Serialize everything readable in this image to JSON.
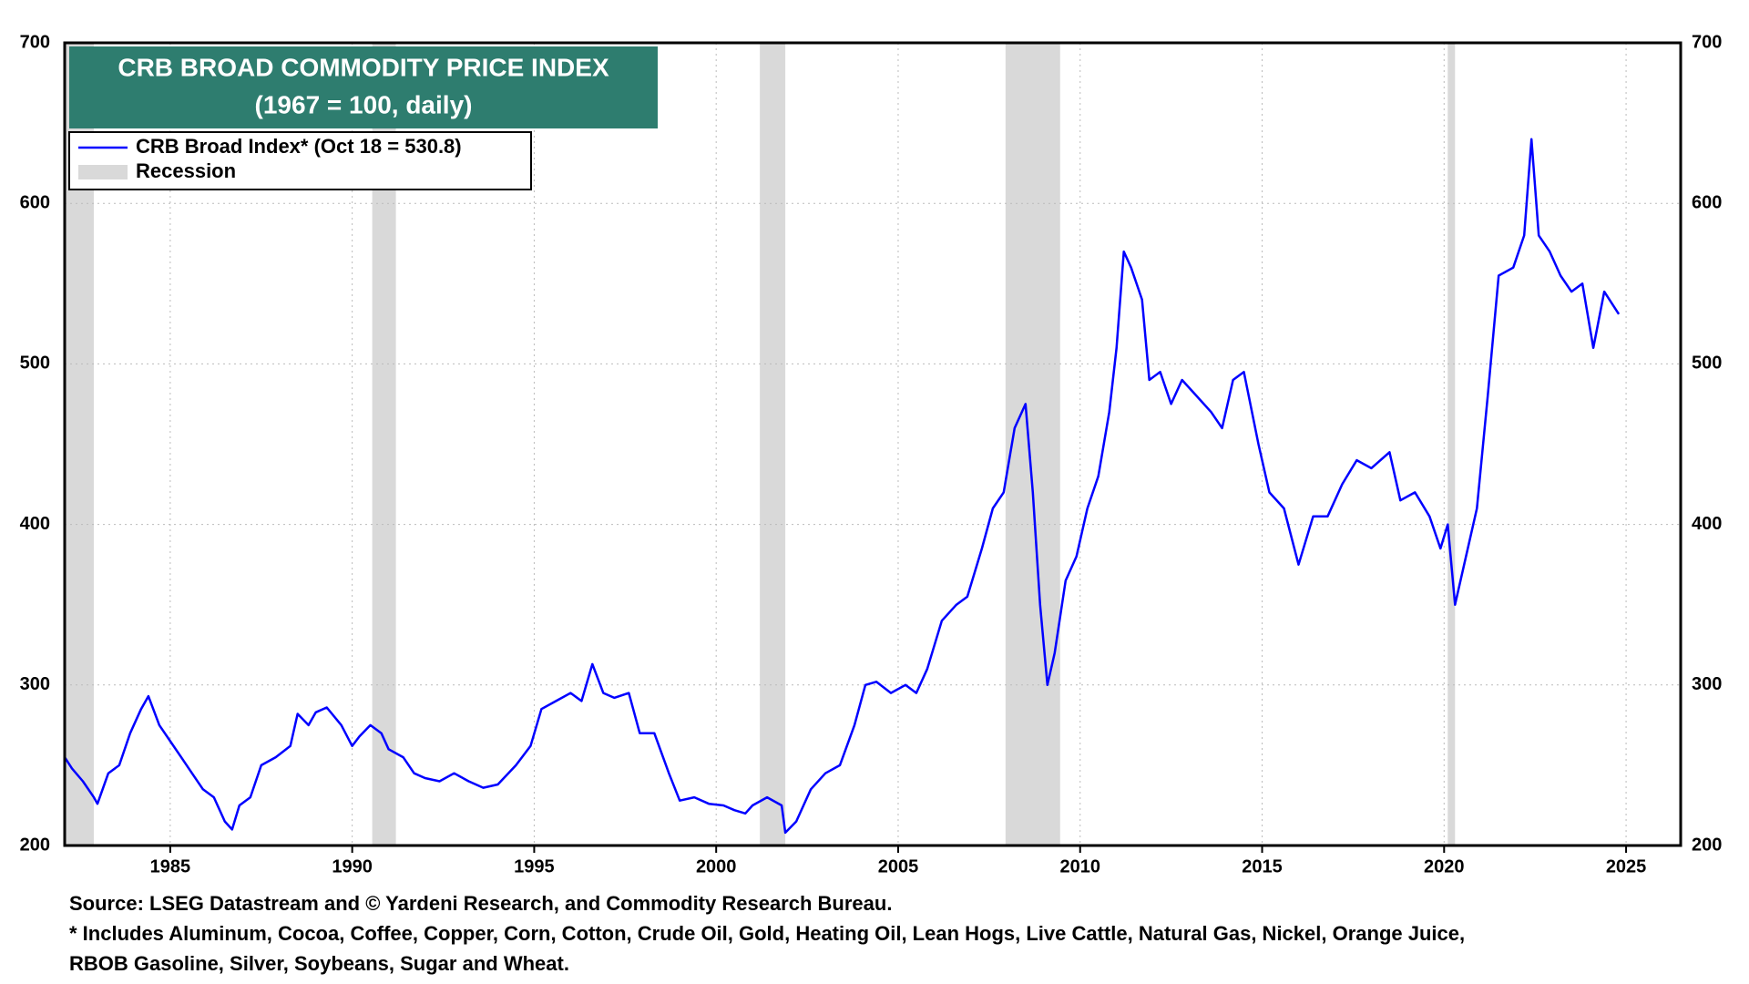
{
  "chart_data": {
    "type": "line",
    "title": "CRB BROAD COMMODITY PRICE INDEX",
    "subtitle": "(1967 = 100, daily)",
    "legend": "upper left",
    "grid": true,
    "xlim": [
      1982.1,
      2026.5
    ],
    "xticks": [
      1985,
      1990,
      1995,
      2000,
      2005,
      2010,
      2015,
      2020,
      2025
    ],
    "ylim": [
      200,
      700
    ],
    "yticks": [
      200,
      300,
      400,
      500,
      600,
      700
    ],
    "recessions": {
      "name": "Recession",
      "color": "#d9d9d9",
      "ranges": [
        [
          1981.55,
          1982.9
        ],
        [
          1990.55,
          1991.2
        ],
        [
          2001.2,
          2001.9
        ],
        [
          2007.95,
          2009.45
        ],
        [
          2020.1,
          2020.3
        ]
      ]
    },
    "x": [
      1982.1,
      1982.3,
      1982.6,
      1982.9,
      1983.0,
      1983.3,
      1983.6,
      1983.9,
      1984.2,
      1984.4,
      1984.7,
      1985.0,
      1985.3,
      1985.6,
      1985.9,
      1986.2,
      1986.5,
      1986.7,
      1986.9,
      1987.2,
      1987.5,
      1987.9,
      1988.3,
      1988.5,
      1988.8,
      1989.0,
      1989.3,
      1989.7,
      1990.0,
      1990.2,
      1990.5,
      1990.8,
      1991.0,
      1991.4,
      1991.7,
      1992.0,
      1992.4,
      1992.8,
      1993.2,
      1993.6,
      1994.0,
      1994.5,
      1994.9,
      1995.2,
      1995.6,
      1996.0,
      1996.3,
      1996.6,
      1996.9,
      1997.2,
      1997.6,
      1997.9,
      1998.3,
      1998.7,
      1999.0,
      1999.4,
      1999.8,
      2000.2,
      2000.5,
      2000.8,
      2001.0,
      2001.4,
      2001.8,
      2001.9,
      2002.2,
      2002.6,
      2003.0,
      2003.4,
      2003.8,
      2004.1,
      2004.4,
      2004.8,
      2005.2,
      2005.5,
      2005.8,
      2006.2,
      2006.6,
      2006.9,
      2007.3,
      2007.6,
      2007.9,
      2008.2,
      2008.5,
      2008.7,
      2008.9,
      2009.1,
      2009.3,
      2009.6,
      2009.9,
      2010.2,
      2010.5,
      2010.8,
      2011.0,
      2011.2,
      2011.4,
      2011.7,
      2011.9,
      2012.2,
      2012.5,
      2012.8,
      2013.2,
      2013.6,
      2013.9,
      2014.2,
      2014.5,
      2014.9,
      2015.2,
      2015.6,
      2016.0,
      2016.4,
      2016.8,
      2017.2,
      2017.6,
      2018.0,
      2018.5,
      2018.8,
      2019.2,
      2019.6,
      2019.9,
      2020.1,
      2020.3,
      2020.6,
      2020.9,
      2021.2,
      2021.5,
      2021.9,
      2022.2,
      2022.4,
      2022.6,
      2022.9,
      2023.2,
      2023.5,
      2023.8,
      2024.1,
      2024.4,
      2024.8
    ],
    "series": [
      {
        "name": "CRB Broad Index* (Oct 18 = 530.8)",
        "color": "#0000ff",
        "values": [
          255,
          248,
          240,
          230,
          226,
          245,
          250,
          270,
          285,
          293,
          275,
          265,
          255,
          245,
          235,
          230,
          215,
          210,
          225,
          230,
          250,
          255,
          262,
          282,
          275,
          283,
          286,
          275,
          262,
          268,
          275,
          270,
          260,
          255,
          245,
          242,
          240,
          245,
          240,
          236,
          238,
          250,
          262,
          285,
          290,
          295,
          290,
          313,
          295,
          292,
          295,
          270,
          270,
          245,
          228,
          230,
          226,
          225,
          222,
          220,
          225,
          230,
          225,
          208,
          215,
          235,
          245,
          250,
          275,
          300,
          302,
          295,
          300,
          295,
          310,
          340,
          350,
          355,
          385,
          410,
          420,
          460,
          475,
          420,
          350,
          300,
          320,
          365,
          380,
          410,
          430,
          470,
          510,
          570,
          560,
          540,
          490,
          495,
          475,
          490,
          480,
          470,
          460,
          490,
          495,
          450,
          420,
          410,
          375,
          405,
          405,
          425,
          440,
          435,
          445,
          415,
          420,
          405,
          385,
          400,
          350,
          380,
          410,
          480,
          555,
          560,
          580,
          640,
          580,
          570,
          555,
          545,
          550,
          510,
          545,
          531
        ]
      }
    ],
    "notes": [
      "Source: LSEG Datastream and © Yardeni Research, and Commodity Research Bureau.",
      "* Includes Aluminum, Cocoa, Coffee, Copper, Corn, Cotton, Crude Oil, Gold, Heating Oil, Lean Hogs, Live Cattle, Natural Gas, Nickel, Orange Juice,",
      "RBOB Gasoline, Silver, Soybeans, Sugar and Wheat."
    ]
  }
}
